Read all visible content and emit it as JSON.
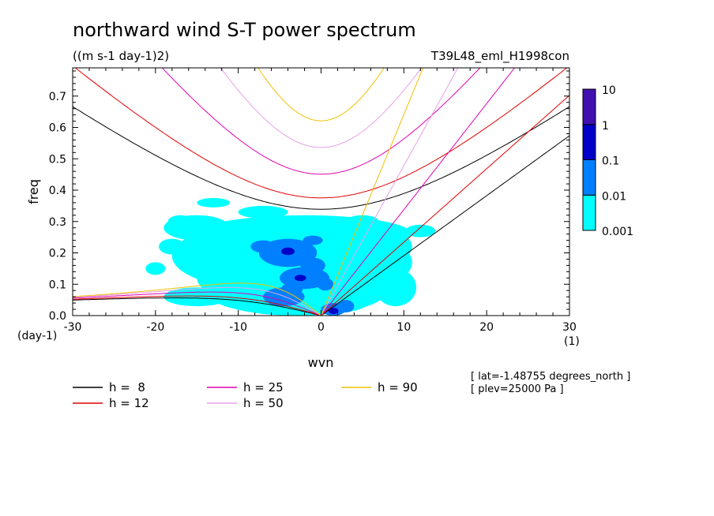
{
  "title": "northward wind S-T power spectrum",
  "units": "((m s-1 day-1)2)",
  "experiment": "T39L48_eml_H1998con",
  "info": [
    "[ lat=-1.48755 degrees_north ]",
    "[ plev=25000 Pa ]"
  ],
  "chart_data": {
    "type": "heatmap",
    "xlabel": "wvn",
    "ylabel": "freq",
    "x_unit": "(1)",
    "y_unit": "(day-1)",
    "xlim": [
      -30,
      30
    ],
    "ylim": [
      0,
      0.79
    ],
    "x_ticks": [
      -30,
      -20,
      -10,
      0,
      10,
      20,
      30
    ],
    "x_tick_labels": [
      "-30",
      "-20",
      "-10",
      "0",
      "10",
      "20",
      "30"
    ],
    "y_ticks": [
      0,
      0.1,
      0.2,
      0.3,
      0.4,
      0.5,
      0.6,
      0.7
    ],
    "y_tick_labels": [
      "0.0",
      "0.1",
      "0.2",
      "0.3",
      "0.4",
      "0.5",
      "0.6",
      "0.7"
    ],
    "colorbar": {
      "levels": [
        "0.001",
        "0.01",
        "0.1",
        "1",
        "10"
      ],
      "colors": [
        "#00ffff",
        "#0080ff",
        "#0000c8",
        "#4010b0"
      ]
    },
    "contour_regions": [
      {
        "level": "0.001-0.01",
        "color": "#00ffff",
        "blobs": [
          [
            -6,
            0.19,
            12,
            0.11
          ],
          [
            -2,
            0.26,
            13,
            0.06
          ],
          [
            -3,
            0.08,
            11,
            0.08
          ],
          [
            4,
            0.17,
            7,
            0.09
          ],
          [
            8,
            0.22,
            3,
            0.05
          ],
          [
            -15,
            0.28,
            4,
            0.04
          ],
          [
            -14,
            0.19,
            3,
            0.04
          ],
          [
            -12,
            0.12,
            3,
            0.05
          ],
          [
            -18,
            0.22,
            1.6,
            0.025
          ],
          [
            -17,
            0.3,
            1.5,
            0.02
          ],
          [
            -15,
            0.06,
            4,
            0.03
          ],
          [
            2,
            0.05,
            4,
            0.04
          ],
          [
            9,
            0.09,
            2.5,
            0.06
          ],
          [
            5,
            0.3,
            2,
            0.02
          ],
          [
            -7,
            0.33,
            3,
            0.02
          ],
          [
            -13,
            0.36,
            2,
            0.015
          ],
          [
            12,
            0.27,
            1.8,
            0.02
          ],
          [
            -20,
            0.15,
            1.2,
            0.02
          ]
        ]
      },
      {
        "level": "0.01-0.1",
        "color": "#0080ff",
        "blobs": [
          [
            -4,
            0.2,
            3.5,
            0.045
          ],
          [
            -2,
            0.12,
            3,
            0.035
          ],
          [
            -4.5,
            0.06,
            2.5,
            0.03
          ],
          [
            -1,
            0.16,
            1.5,
            0.025
          ],
          [
            1.5,
            0.02,
            1.5,
            0.02
          ],
          [
            3,
            0.03,
            1.0,
            0.02
          ],
          [
            -7,
            0.22,
            1.5,
            0.02
          ],
          [
            -1,
            0.24,
            1.2,
            0.015
          ],
          [
            0.5,
            0.1,
            1.0,
            0.02
          ],
          [
            -3.5,
            0.085,
            1.3,
            0.02
          ]
        ]
      },
      {
        "level": "0.1-1",
        "color": "#0000c8",
        "blobs": [
          [
            -4,
            0.205,
            0.8,
            0.012
          ],
          [
            -2.5,
            0.12,
            0.7,
            0.01
          ],
          [
            1.5,
            0.015,
            0.6,
            0.01
          ]
        ]
      }
    ],
    "series": [
      {
        "name": "h =  8",
        "color": "#000000"
      },
      {
        "name": "h = 12",
        "color": "#e00000"
      },
      {
        "name": "h = 25",
        "color": "#e000b0"
      },
      {
        "name": "h = 50",
        "color": "#e8a0e8"
      },
      {
        "name": "h = 90",
        "color": "#f0c000"
      }
    ],
    "equivalent_depths_m": [
      8,
      12,
      25,
      50,
      90
    ]
  }
}
